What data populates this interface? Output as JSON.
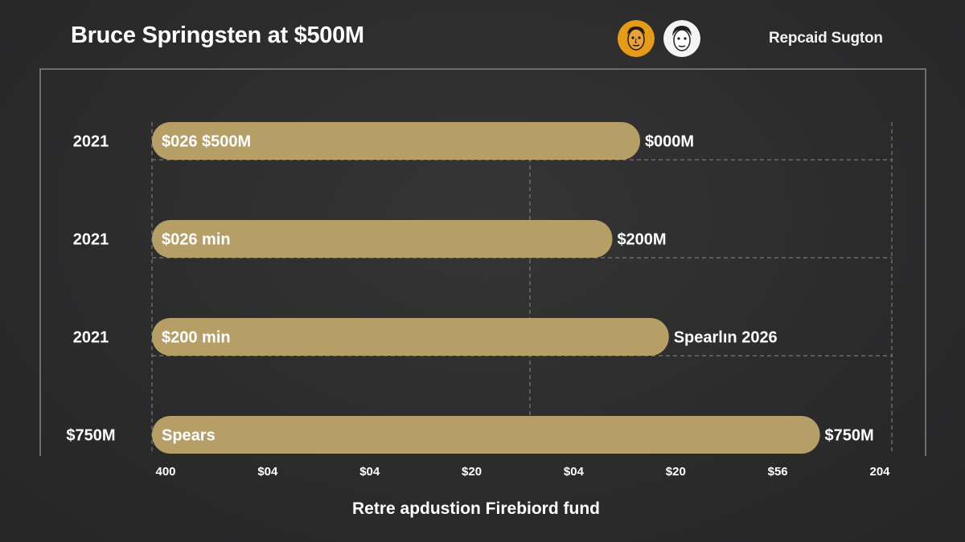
{
  "title": "Bruce Springsten at $500M",
  "brand": "Repcaid Sugton",
  "chart_data": {
    "type": "bar",
    "orientation": "horizontal",
    "title": "Bruce Springsten at $500M",
    "xlabel": "Retre apdustion Firebiord fund",
    "ylabel": "",
    "categories": [
      "2021",
      "2021",
      "2021",
      "$750M"
    ],
    "bar_labels": [
      "$026 $500M",
      "$026 min",
      "$200 min",
      "Spears"
    ],
    "value_labels": [
      "$000M",
      "$200M",
      "Spearlın 2026",
      "$750M"
    ],
    "values": [
      475,
      448,
      503,
      650
    ],
    "x_ticks": [
      "400",
      "$04",
      "$04",
      "$20",
      "$04",
      "$20",
      "$56",
      "204"
    ],
    "xlim": [
      0,
      720
    ],
    "grid": true,
    "colors": {
      "bar": "#b59f66",
      "grid": "#8a8a8a",
      "frame": "#6d6d6d"
    }
  }
}
